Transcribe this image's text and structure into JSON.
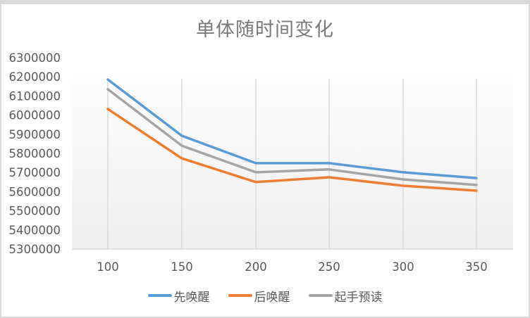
{
  "chart_data": {
    "type": "line",
    "title": "单体随时间变化",
    "xlabel": "",
    "ylabel": "",
    "categories": [
      "100",
      "150",
      "200",
      "250",
      "300",
      "350"
    ],
    "ylim": [
      5300000,
      6300000
    ],
    "yticks": [
      5300000,
      5400000,
      5500000,
      5600000,
      5700000,
      5800000,
      5900000,
      6000000,
      6100000,
      6200000,
      6300000
    ],
    "grid": "vertical",
    "legend_position": "bottom",
    "series": [
      {
        "name": "先唤醒",
        "color": "#5b9bd5",
        "values": [
          6186000,
          5892000,
          5749000,
          5749000,
          5701000,
          5671000
        ]
      },
      {
        "name": "后唤醒",
        "color": "#ed7d31",
        "values": [
          6032000,
          5774000,
          5650000,
          5675000,
          5631000,
          5605000
        ]
      },
      {
        "name": "起手预读",
        "color": "#a5a5a5",
        "values": [
          6135000,
          5840000,
          5701000,
          5716000,
          5664000,
          5635000
        ]
      }
    ]
  }
}
